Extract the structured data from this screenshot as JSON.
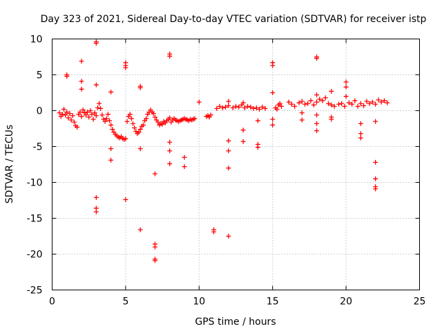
{
  "chart_data": {
    "type": "scatter",
    "title": "Day 323 of 2021, Sidereal Day-to-day VTEC variation (SDTVAR) for receiver istp",
    "xlabel": "GPS time / hours",
    "ylabel": "SDTVAR / TECUs",
    "xlim": [
      0,
      25
    ],
    "ylim": [
      -25,
      10
    ],
    "xticks": [
      0,
      5,
      10,
      15,
      20,
      25
    ],
    "yticks": [
      -25,
      -20,
      -15,
      -10,
      -5,
      0,
      5,
      10
    ],
    "grid": true,
    "marker": "+",
    "color": "#ff0000",
    "series": [
      {
        "name": "SDTVAR",
        "points": [
          [
            0.5,
            -0.3
          ],
          [
            0.6,
            -0.8
          ],
          [
            0.7,
            -0.5
          ],
          [
            0.8,
            0.2
          ],
          [
            0.9,
            -0.6
          ],
          [
            1.0,
            -0.2
          ],
          [
            1.1,
            -1.0
          ],
          [
            1.2,
            -0.4
          ],
          [
            1.3,
            -1.3
          ],
          [
            1.4,
            -0.7
          ],
          [
            1.5,
            -1.6
          ],
          [
            1.6,
            -2.1
          ],
          [
            1.7,
            -2.3
          ],
          [
            1.8,
            -0.5
          ],
          [
            1.9,
            -0.2
          ],
          [
            2.0,
            -0.8
          ],
          [
            2.1,
            0.1
          ],
          [
            2.2,
            -0.3
          ],
          [
            2.3,
            -0.6
          ],
          [
            2.4,
            -0.2
          ],
          [
            2.5,
            -0.9
          ],
          [
            2.6,
            0.0
          ],
          [
            2.7,
            -0.5
          ],
          [
            2.8,
            -1.2
          ],
          [
            2.9,
            -0.3
          ],
          [
            3.0,
            -0.7
          ],
          [
            3.1,
            0.4
          ],
          [
            3.2,
            1.0
          ],
          [
            3.3,
            0.3
          ],
          [
            3.4,
            -0.6
          ],
          [
            3.5,
            -1.2
          ],
          [
            3.6,
            -1.5
          ],
          [
            3.7,
            -1.1
          ],
          [
            3.8,
            -0.5
          ],
          [
            3.9,
            -1.4
          ],
          [
            4.0,
            -2.0
          ],
          [
            4.1,
            -2.6
          ],
          [
            4.2,
            -3.0
          ],
          [
            4.3,
            -3.3
          ],
          [
            4.4,
            -3.5
          ],
          [
            4.5,
            -3.7
          ],
          [
            4.6,
            -3.8
          ],
          [
            4.7,
            -3.6
          ],
          [
            4.8,
            -3.9
          ],
          [
            4.9,
            -4.0
          ],
          [
            5.0,
            -3.9
          ],
          [
            5.1,
            -1.5
          ],
          [
            5.2,
            -0.8
          ],
          [
            5.3,
            -0.5
          ],
          [
            5.4,
            -1.1
          ],
          [
            5.5,
            -1.8
          ],
          [
            5.6,
            -2.4
          ],
          [
            5.7,
            -2.9
          ],
          [
            5.8,
            -3.2
          ],
          [
            5.9,
            -3.0
          ],
          [
            6.0,
            -2.6
          ],
          [
            6.1,
            -2.2
          ],
          [
            6.2,
            -2.0
          ],
          [
            6.3,
            -1.4
          ],
          [
            6.4,
            -1.1
          ],
          [
            6.5,
            -0.5
          ],
          [
            6.6,
            -0.2
          ],
          [
            6.7,
            0.1
          ],
          [
            6.8,
            -0.2
          ],
          [
            6.9,
            -0.4
          ],
          [
            7.0,
            -0.9
          ],
          [
            7.1,
            -1.3
          ],
          [
            7.2,
            -1.6
          ],
          [
            7.3,
            -2.0
          ],
          [
            7.4,
            -1.8
          ],
          [
            7.5,
            -1.9
          ],
          [
            7.6,
            -1.5
          ],
          [
            7.7,
            -1.7
          ],
          [
            7.8,
            -1.4
          ],
          [
            7.9,
            -1.2
          ],
          [
            8.0,
            -1.0
          ],
          [
            8.1,
            -1.6
          ],
          [
            8.2,
            -1.3
          ],
          [
            8.3,
            -1.1
          ],
          [
            8.4,
            -1.3
          ],
          [
            8.5,
            -1.4
          ],
          [
            8.6,
            -1.5
          ],
          [
            8.7,
            -1.4
          ],
          [
            8.8,
            -1.3
          ],
          [
            8.9,
            -1.2
          ],
          [
            9.0,
            -1.1
          ],
          [
            9.1,
            -1.2
          ],
          [
            9.2,
            -1.3
          ],
          [
            9.3,
            -1.4
          ],
          [
            9.4,
            -1.2
          ],
          [
            9.5,
            -1.3
          ],
          [
            9.6,
            -1.2
          ],
          [
            9.7,
            -1.1
          ],
          [
            10.5,
            -0.8
          ],
          [
            10.6,
            -0.7
          ],
          [
            10.7,
            -0.9
          ],
          [
            10.8,
            -0.6
          ],
          [
            11.2,
            0.3
          ],
          [
            11.4,
            0.6
          ],
          [
            11.6,
            0.4
          ],
          [
            11.8,
            0.5
          ],
          [
            12.0,
            0.7
          ],
          [
            12.3,
            0.4
          ],
          [
            12.5,
            0.6
          ],
          [
            12.7,
            0.5
          ],
          [
            12.9,
            0.8
          ],
          [
            13.1,
            0.4
          ],
          [
            13.3,
            0.6
          ],
          [
            13.5,
            0.5
          ],
          [
            13.7,
            0.3
          ],
          [
            13.9,
            0.4
          ],
          [
            14.1,
            0.2
          ],
          [
            14.3,
            0.5
          ],
          [
            14.5,
            0.3
          ],
          [
            15.2,
            0.4
          ],
          [
            15.3,
            0.2
          ],
          [
            15.4,
            0.8
          ],
          [
            15.5,
            1.0
          ],
          [
            15.6,
            0.6
          ],
          [
            16.1,
            1.2
          ],
          [
            16.3,
            0.9
          ],
          [
            16.5,
            0.6
          ],
          [
            16.8,
            1.1
          ],
          [
            17.0,
            1.3
          ],
          [
            17.2,
            0.9
          ],
          [
            17.4,
            1.0
          ],
          [
            17.6,
            1.4
          ],
          [
            17.8,
            0.8
          ],
          [
            18.0,
            1.2
          ],
          [
            18.2,
            1.6
          ],
          [
            18.4,
            1.4
          ],
          [
            18.6,
            1.8
          ],
          [
            18.8,
            1.0
          ],
          [
            19.0,
            0.8
          ],
          [
            19.2,
            0.6
          ],
          [
            19.5,
            0.9
          ],
          [
            19.7,
            1.0
          ],
          [
            19.9,
            0.6
          ],
          [
            20.2,
            1.1
          ],
          [
            20.4,
            0.9
          ],
          [
            20.6,
            1.4
          ],
          [
            20.8,
            0.6
          ],
          [
            21.0,
            1.0
          ],
          [
            21.2,
            0.7
          ],
          [
            21.4,
            1.3
          ],
          [
            21.6,
            1.0
          ],
          [
            21.8,
            1.2
          ],
          [
            22.0,
            0.9
          ],
          [
            22.2,
            1.5
          ],
          [
            22.4,
            1.2
          ],
          [
            22.6,
            1.4
          ],
          [
            22.8,
            1.1
          ],
          [
            1.0,
            5.0
          ],
          [
            1.0,
            4.8
          ],
          [
            2.0,
            6.9
          ],
          [
            2.0,
            4.1
          ],
          [
            2.0,
            3.0
          ],
          [
            3.0,
            9.6
          ],
          [
            3.0,
            9.4
          ],
          [
            3.0,
            3.6
          ],
          [
            3.0,
            -12.1
          ],
          [
            3.0,
            -13.6
          ],
          [
            3.0,
            -14.1
          ],
          [
            4.0,
            2.6
          ],
          [
            4.0,
            -5.3
          ],
          [
            4.0,
            -6.9
          ],
          [
            5.0,
            6.7
          ],
          [
            5.0,
            6.3
          ],
          [
            5.0,
            6.0
          ],
          [
            5.0,
            -12.4
          ],
          [
            6.0,
            3.4
          ],
          [
            6.0,
            3.2
          ],
          [
            6.0,
            -5.3
          ],
          [
            6.0,
            -16.6
          ],
          [
            7.0,
            -8.8
          ],
          [
            7.0,
            -18.6
          ],
          [
            7.0,
            -19.0
          ],
          [
            7.0,
            -20.7
          ],
          [
            7.0,
            -20.9
          ],
          [
            8.0,
            7.9
          ],
          [
            8.0,
            7.6
          ],
          [
            8.0,
            -4.4
          ],
          [
            8.0,
            -5.6
          ],
          [
            8.0,
            -7.4
          ],
          [
            9.0,
            -6.5
          ],
          [
            9.0,
            -7.8
          ],
          [
            10.0,
            1.2
          ],
          [
            11.0,
            -16.6
          ],
          [
            11.0,
            -16.9
          ],
          [
            12.0,
            1.3
          ],
          [
            12.0,
            -4.2
          ],
          [
            12.0,
            -5.6
          ],
          [
            12.0,
            -8.0
          ],
          [
            12.0,
            -17.5
          ],
          [
            13.0,
            1.1
          ],
          [
            13.0,
            -2.7
          ],
          [
            13.0,
            -4.3
          ],
          [
            14.0,
            -1.4
          ],
          [
            14.0,
            -4.7
          ],
          [
            14.0,
            -5.1
          ],
          [
            15.0,
            6.7
          ],
          [
            15.0,
            6.3
          ],
          [
            15.0,
            2.5
          ],
          [
            15.0,
            -1.2
          ],
          [
            15.0,
            -2.0
          ],
          [
            17.0,
            -0.3
          ],
          [
            17.0,
            -1.3
          ],
          [
            18.0,
            7.5
          ],
          [
            18.0,
            7.3
          ],
          [
            18.0,
            2.2
          ],
          [
            18.0,
            -1.8
          ],
          [
            18.0,
            -2.8
          ],
          [
            18.0,
            -0.6
          ],
          [
            19.0,
            2.7
          ],
          [
            19.0,
            -0.9
          ],
          [
            19.0,
            -1.2
          ],
          [
            20.0,
            4.0
          ],
          [
            20.0,
            3.3
          ],
          [
            20.0,
            2.0
          ],
          [
            21.0,
            -1.8
          ],
          [
            21.0,
            -3.2
          ],
          [
            21.0,
            -3.8
          ],
          [
            22.0,
            -1.5
          ],
          [
            22.0,
            -7.2
          ],
          [
            22.0,
            -9.5
          ],
          [
            22.0,
            -10.6
          ],
          [
            22.0,
            -10.9
          ]
        ]
      }
    ]
  }
}
